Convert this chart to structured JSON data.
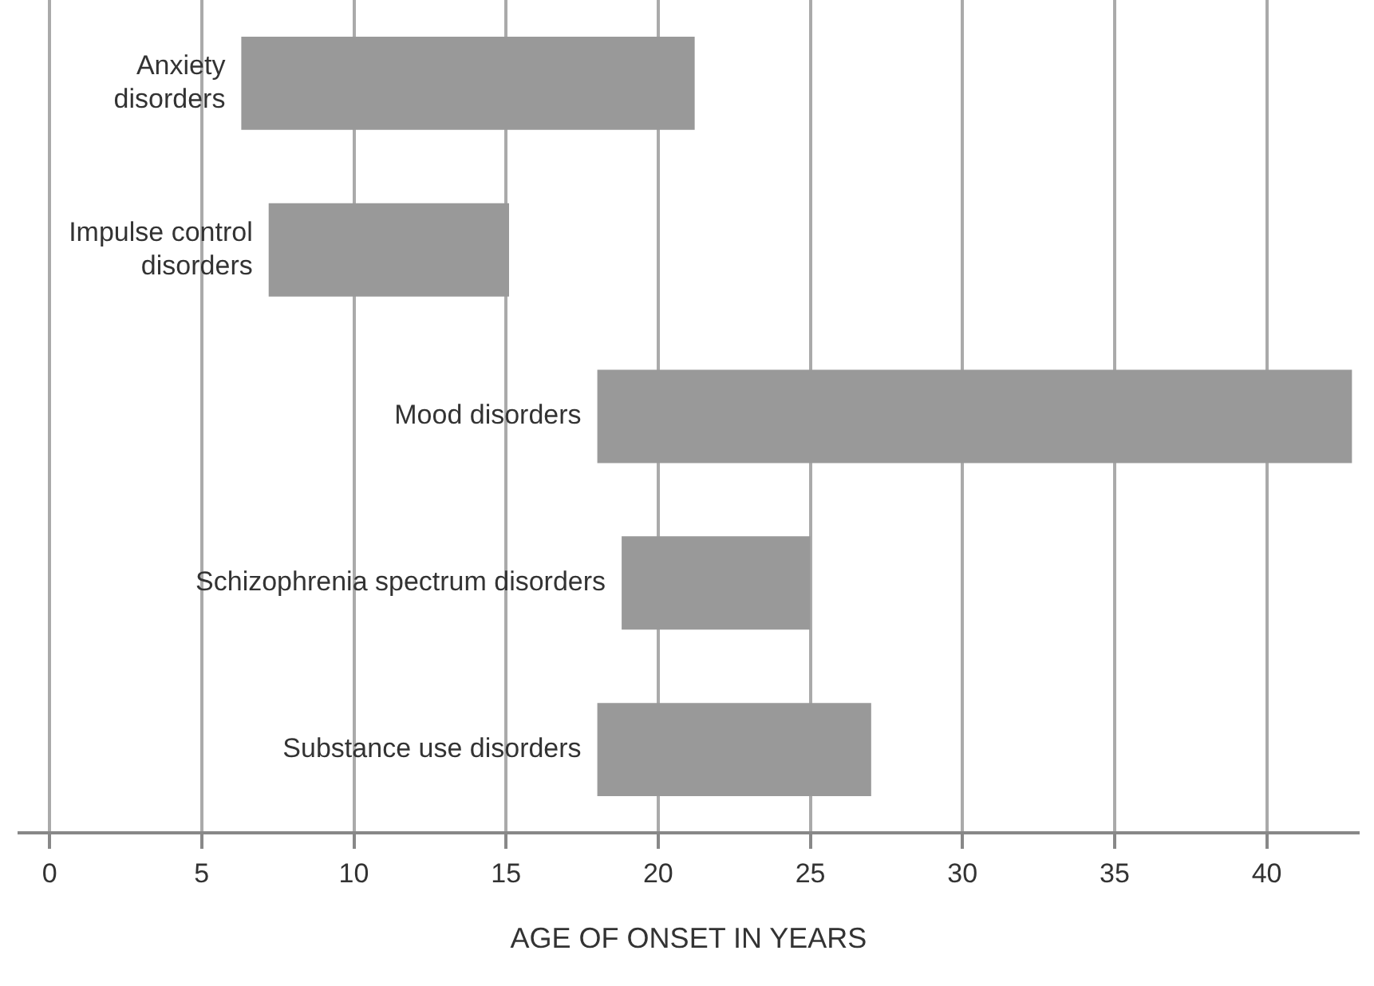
{
  "chart_data": {
    "type": "bar",
    "orientation": "horizontal",
    "xlabel": "AGE OF ONSET IN YEARS",
    "categories": [
      "Anxiety disorders",
      "Impulse control disorders",
      "Mood disorders",
      "Schizophrenia spectrum disorders",
      "Substance use disorders"
    ],
    "base": [
      6.3,
      7.2,
      18,
      18.8,
      18
    ],
    "values": [
      14.9,
      7.9,
      24.8,
      6.2,
      9
    ],
    "color": "#999999",
    "xlim": [
      -1,
      43
    ],
    "xticks": [
      0,
      5,
      10,
      15,
      20,
      25,
      30,
      35,
      40
    ],
    "grid": "x",
    "legend": false
  }
}
